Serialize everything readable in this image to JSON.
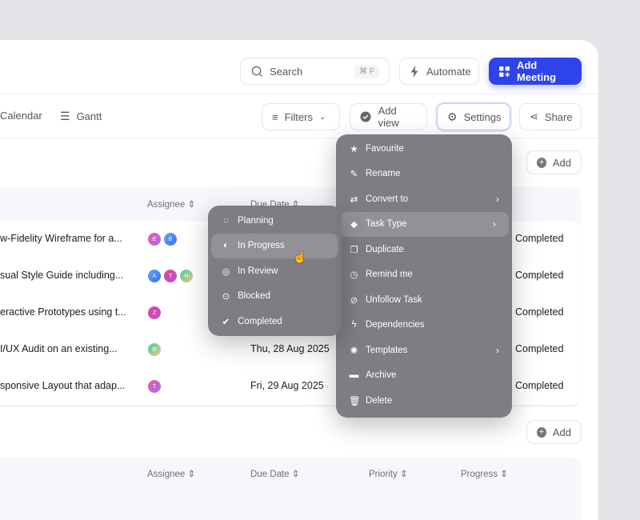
{
  "header": {
    "search_placeholder": "Search",
    "search_shortcut": "⌘ F",
    "automate": "Automate",
    "add_meeting": "Add Meeting"
  },
  "views": {
    "calendar": "Calendar",
    "gantt": "Gantt"
  },
  "toolbar": {
    "filters": "Filters",
    "add_view": "Add view",
    "settings": "Settings",
    "share": "Share"
  },
  "add_label": "Add",
  "columns": {
    "assignee": "Assignee",
    "due_date": "Due Date",
    "priority": "Priority",
    "progress": "Progress"
  },
  "rows": [
    {
      "title": "w-Fidelity Wireframe for a...",
      "due": "",
      "status": "Completed",
      "avatars": [
        "E",
        "B"
      ]
    },
    {
      "title": "sual Style Guide including...",
      "due": "",
      "status": "Completed",
      "avatars": [
        "A",
        "T",
        "H"
      ]
    },
    {
      "title": "eractive Prototypes using t...",
      "due": "",
      "status": "Completed",
      "avatars": [
        "Z"
      ]
    },
    {
      "title": "I/UX Audit on an existing...",
      "due": "Thu, 28 Aug 2025",
      "status": "Completed",
      "avatars": [
        "R"
      ]
    },
    {
      "title": "sponsive Layout that adap...",
      "due": "Fri, 29 Aug 2025",
      "status": "Completed",
      "avatars": [
        "T"
      ]
    }
  ],
  "settings_menu": [
    {
      "label": "Favourite",
      "icon": "star"
    },
    {
      "label": "Rename",
      "icon": "pencil"
    },
    {
      "label": "Convert to",
      "icon": "arrows",
      "sub": true
    },
    {
      "label": "Task Type",
      "icon": "tag",
      "sub": true,
      "active": true
    },
    {
      "label": "Duplicate",
      "icon": "copy"
    },
    {
      "label": "Remind me",
      "icon": "clock"
    },
    {
      "label": "Unfollow Task",
      "icon": "eye-off"
    },
    {
      "label": "Dependencies",
      "icon": "bolt"
    },
    {
      "label": "Templates",
      "icon": "bulb",
      "sub": true
    },
    {
      "label": "Archive",
      "icon": "folder"
    },
    {
      "label": "Delete",
      "icon": "trash"
    }
  ],
  "task_type_menu": [
    {
      "label": "Planning",
      "icon": "dashed-circle"
    },
    {
      "label": "In Progress",
      "icon": "half-circle",
      "active": true
    },
    {
      "label": "In Review",
      "icon": "ring"
    },
    {
      "label": "Blocked",
      "icon": "dot-circle"
    },
    {
      "label": "Completed",
      "icon": "check-circle"
    }
  ],
  "colors": {
    "accent": "#2f43ea",
    "menu": "#78787e"
  }
}
